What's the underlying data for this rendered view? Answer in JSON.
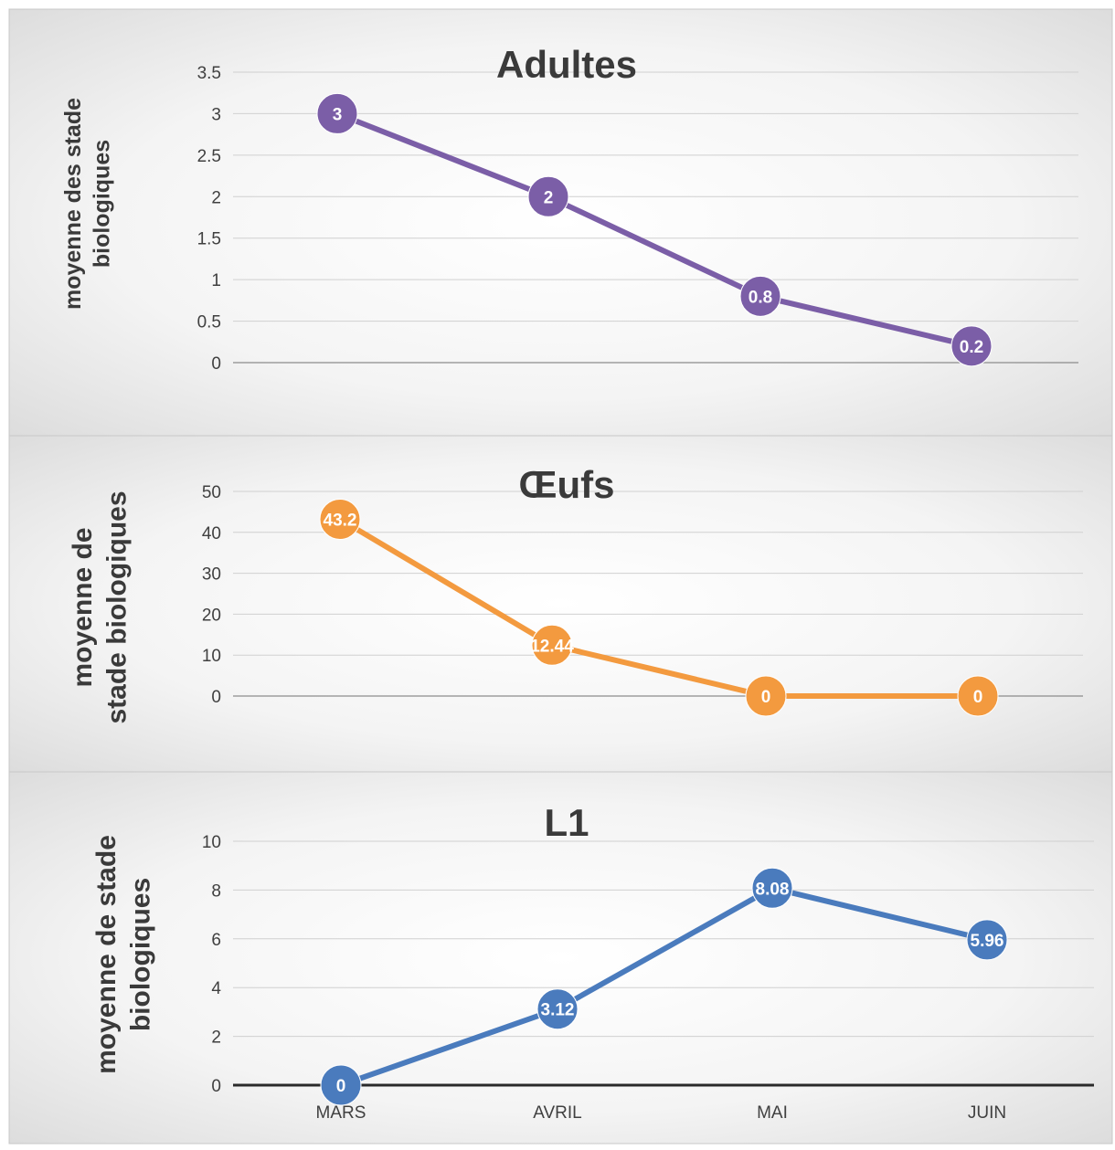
{
  "chart_data": [
    {
      "type": "line",
      "title": "Adultes",
      "ylabel": [
        "moyenne des stade",
        "biologiques"
      ],
      "categories": [
        "MARS",
        "AVRIL",
        "MAI",
        "JUIN"
      ],
      "values": [
        3,
        2,
        0.8,
        0.2
      ],
      "data_labels": [
        "3",
        "2",
        "0.8",
        "0.2"
      ],
      "yticks": [
        "0",
        "0.5",
        "1",
        "1.5",
        "2",
        "2.5",
        "3",
        "3.5"
      ],
      "ylim": [
        0,
        3.5
      ],
      "color": "#7b5ea7",
      "grid": true
    },
    {
      "type": "line",
      "title": "Œufs",
      "ylabel": [
        "moyenne de",
        "stade biologiques"
      ],
      "categories": [
        "MARS",
        "AVRIL",
        "MAI",
        "JUIN"
      ],
      "values": [
        43.2,
        12.44,
        0,
        0
      ],
      "data_labels": [
        "43.2",
        "12.44",
        "0",
        "0"
      ],
      "yticks": [
        "0",
        "10",
        "20",
        "30",
        "40",
        "50"
      ],
      "ylim": [
        0,
        50
      ],
      "color": "#f39a3f",
      "grid": true
    },
    {
      "type": "line",
      "title": "L1",
      "ylabel": [
        "moyenne de stade",
        "biologiques"
      ],
      "categories": [
        "MARS",
        "AVRIL",
        "MAI",
        "JUIN"
      ],
      "values": [
        0,
        3.12,
        8.08,
        5.96
      ],
      "data_labels": [
        "0",
        "3.12",
        "8.08",
        "5.96"
      ],
      "yticks": [
        "0",
        "2",
        "4",
        "6",
        "8",
        "10"
      ],
      "ylim": [
        0,
        10
      ],
      "color": "#4a7bbd",
      "grid": true,
      "show_x_labels": true
    }
  ]
}
